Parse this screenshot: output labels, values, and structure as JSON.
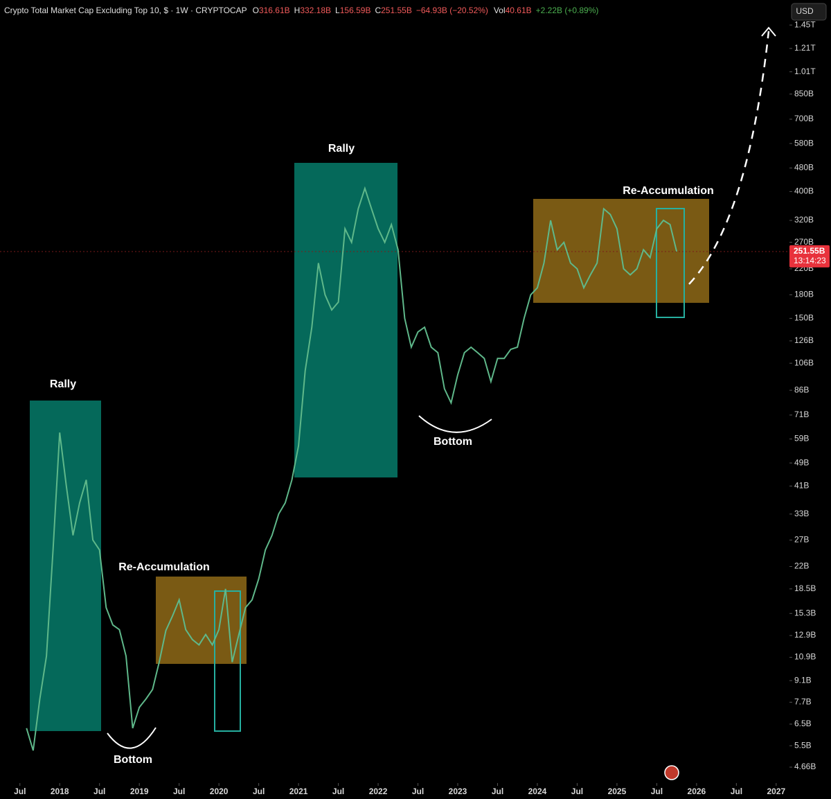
{
  "header": {
    "title": "Crypto Total Market Cap Excluding Top 10, $ · 1W · CRYPTOCAP",
    "ohlc": [
      {
        "label": "O",
        "value": "316.61B"
      },
      {
        "label": "H",
        "value": "332.18B"
      },
      {
        "label": "L",
        "value": "156.59B"
      },
      {
        "label": "C",
        "value": "251.55B"
      }
    ],
    "change": "−64.93B (−20.52%)",
    "volume_label": "Vol",
    "volume": "40.61B",
    "volume_change": "+2.22B (+0.89%)",
    "currency": "USD"
  },
  "chart_data": {
    "type": "line",
    "log_scale": true,
    "color": "#5fb88a",
    "annotations": [
      "Rally",
      "Rally",
      "Re-Accumulation",
      "Re-Accumulation",
      "Bottom",
      "Bottom"
    ],
    "last_price_label": "251.55B",
    "countdown": "13:14:23",
    "x": [
      "2017-08",
      "2017-09",
      "2017-10",
      "2017-11",
      "2017-12",
      "2018-01",
      "2018-02",
      "2018-03",
      "2018-04",
      "2018-05",
      "2018-06",
      "2018-07",
      "2018-08",
      "2018-09",
      "2018-10",
      "2018-11",
      "2018-12",
      "2019-01",
      "2019-02",
      "2019-03",
      "2019-04",
      "2019-05",
      "2019-06",
      "2019-07",
      "2019-08",
      "2019-09",
      "2019-10",
      "2019-11",
      "2019-12",
      "2020-01",
      "2020-02",
      "2020-03",
      "2020-04",
      "2020-05",
      "2020-06",
      "2020-07",
      "2020-08",
      "2020-09",
      "2020-10",
      "2020-11",
      "2020-12",
      "2021-01",
      "2021-02",
      "2021-03",
      "2021-04",
      "2021-05",
      "2021-06",
      "2021-07",
      "2021-08",
      "2021-09",
      "2021-10",
      "2021-11",
      "2021-12",
      "2022-01",
      "2022-02",
      "2022-03",
      "2022-04",
      "2022-05",
      "2022-06",
      "2022-07",
      "2022-08",
      "2022-09",
      "2022-10",
      "2022-11",
      "2022-12",
      "2023-01",
      "2023-02",
      "2023-03",
      "2023-04",
      "2023-05",
      "2023-06",
      "2023-07",
      "2023-08",
      "2023-09",
      "2023-10",
      "2023-11",
      "2023-12",
      "2024-01",
      "2024-02",
      "2024-03",
      "2024-04",
      "2024-05",
      "2024-06",
      "2024-07",
      "2024-08",
      "2024-09",
      "2024-10",
      "2024-11",
      "2024-12",
      "2025-01",
      "2025-02",
      "2025-03",
      "2025-04",
      "2025-05",
      "2025-06",
      "2025-07",
      "2025-08",
      "2025-09",
      "2025-10"
    ],
    "values": [
      6.3,
      5.3,
      7.9,
      11,
      25,
      62,
      41,
      28,
      36,
      43,
      27,
      25,
      16,
      14,
      13.5,
      11,
      6.3,
      7.4,
      7.9,
      8.5,
      10.5,
      13.4,
      15,
      17,
      13.5,
      12.5,
      12,
      13,
      12,
      13.5,
      18.5,
      10.5,
      13,
      16,
      17,
      20,
      25,
      28,
      33,
      36,
      43,
      56,
      100,
      140,
      230,
      180,
      160,
      170,
      300,
      270,
      350,
      410,
      350,
      300,
      270,
      310,
      255,
      150,
      120,
      135,
      140,
      120,
      115,
      87,
      78,
      97,
      115,
      120,
      115,
      110,
      92,
      110,
      110,
      118,
      120,
      150,
      180,
      190,
      230,
      320,
      255,
      270,
      230,
      220,
      190,
      210,
      230,
      350,
      335,
      300,
      220,
      210,
      220,
      255,
      240,
      300,
      320,
      310,
      251.55
    ],
    "xlim": [
      "2017-04",
      "2027-03"
    ],
    "xticks": [
      {
        "value": "2017-07",
        "label": "Jul"
      },
      {
        "value": "2018-01",
        "label": "2018"
      },
      {
        "value": "2018-07",
        "label": "Jul"
      },
      {
        "value": "2019-01",
        "label": "2019"
      },
      {
        "value": "2019-07",
        "label": "Jul"
      },
      {
        "value": "2020-01",
        "label": "2020"
      },
      {
        "value": "2020-07",
        "label": "Jul"
      },
      {
        "value": "2021-01",
        "label": "2021"
      },
      {
        "value": "2021-07",
        "label": "Jul"
      },
      {
        "value": "2022-01",
        "label": "2022"
      },
      {
        "value": "2022-07",
        "label": "Jul"
      },
      {
        "value": "2023-01",
        "label": "2023"
      },
      {
        "value": "2023-07",
        "label": "Jul"
      },
      {
        "value": "2024-01",
        "label": "2024"
      },
      {
        "value": "2024-07",
        "label": "Jul"
      },
      {
        "value": "2025-01",
        "label": "2025"
      },
      {
        "value": "2025-07",
        "label": "Jul"
      },
      {
        "value": "2026-01",
        "label": "2026"
      },
      {
        "value": "2026-07",
        "label": "Jul"
      },
      {
        "value": "2027-01",
        "label": "2027"
      }
    ],
    "ylim": [
      4.12,
      1760
    ],
    "yticks": [
      {
        "value": 1450,
        "label": "1.45T"
      },
      {
        "value": 1210,
        "label": "1.21T"
      },
      {
        "value": 1010,
        "label": "1.01T"
      },
      {
        "value": 850,
        "label": "850B"
      },
      {
        "value": 700,
        "label": "700B"
      },
      {
        "value": 580,
        "label": "580B"
      },
      {
        "value": 480,
        "label": "480B"
      },
      {
        "value": 400,
        "label": "400B"
      },
      {
        "value": 320,
        "label": "320B"
      },
      {
        "value": 270,
        "label": "270B"
      },
      {
        "value": 220,
        "label": "220B"
      },
      {
        "value": 180,
        "label": "180B"
      },
      {
        "value": 150,
        "label": "150B"
      },
      {
        "value": 126,
        "label": "126B"
      },
      {
        "value": 106,
        "label": "106B"
      },
      {
        "value": 86,
        "label": "86B"
      },
      {
        "value": 71,
        "label": "71B"
      },
      {
        "value": 59,
        "label": "59B"
      },
      {
        "value": 49,
        "label": "49B"
      },
      {
        "value": 41,
        "label": "41B"
      },
      {
        "value": 33,
        "label": "33B"
      },
      {
        "value": 27,
        "label": "27B"
      },
      {
        "value": 22,
        "label": "22B"
      },
      {
        "value": 18.5,
        "label": "18.5B"
      },
      {
        "value": 15.3,
        "label": "15.3B"
      },
      {
        "value": 12.9,
        "label": "12.9B"
      },
      {
        "value": 10.9,
        "label": "10.9B"
      },
      {
        "value": 9.1,
        "label": "9.1B"
      },
      {
        "value": 7.7,
        "label": "7.7B"
      },
      {
        "value": 6.5,
        "label": "6.5B"
      },
      {
        "value": 5.5,
        "label": "5.5B"
      },
      {
        "value": 4.66,
        "label": "4.66B"
      }
    ]
  }
}
